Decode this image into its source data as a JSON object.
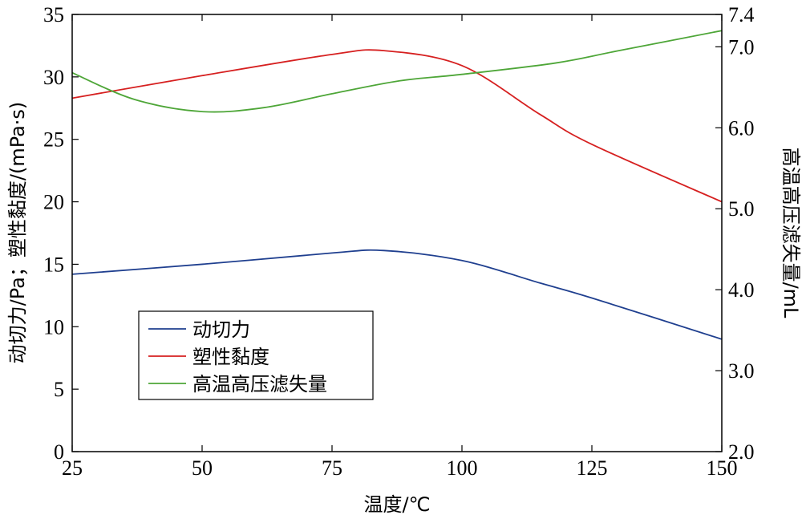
{
  "chart_data": {
    "type": "line",
    "xlabel": "温度/℃",
    "ylabel_left": "动切力/Pa；塑性黏度/(mPa·s)",
    "ylabel_right": "高温高压滤失量/mL",
    "xlim": [
      25,
      150
    ],
    "ylim_left": [
      0,
      35
    ],
    "ylim_right": [
      2.0,
      7.4
    ],
    "x_ticks": [
      {
        "value": 25,
        "label": "25"
      },
      {
        "value": 50,
        "label": "50"
      },
      {
        "value": 75,
        "label": "75"
      },
      {
        "value": 100,
        "label": "100"
      },
      {
        "value": 125,
        "label": "125"
      },
      {
        "value": 150,
        "label": "150"
      }
    ],
    "y_left_ticks": [
      {
        "value": 0,
        "label": "0"
      },
      {
        "value": 5,
        "label": "5"
      },
      {
        "value": 10,
        "label": "10"
      },
      {
        "value": 15,
        "label": "15"
      },
      {
        "value": 20,
        "label": "20"
      },
      {
        "value": 25,
        "label": "25"
      },
      {
        "value": 30,
        "label": "30"
      },
      {
        "value": 35,
        "label": "35"
      }
    ],
    "y_right_ticks": [
      {
        "value": 2.0,
        "label": "2.0"
      },
      {
        "value": 3.0,
        "label": "3.0"
      },
      {
        "value": 4.0,
        "label": "4.0"
      },
      {
        "value": 5.0,
        "label": "5.0"
      },
      {
        "value": 6.0,
        "label": "6.0"
      },
      {
        "value": 7.0,
        "label": "7.0"
      },
      {
        "value": 7.4,
        "label": "7.4"
      }
    ],
    "grid": false,
    "legend_position": "lower-left",
    "series": [
      {
        "name": "动切力",
        "axis": "left",
        "color": "#1f3f8f",
        "x": [
          25,
          50,
          75,
          85,
          100,
          115,
          125,
          150
        ],
        "y": [
          14.2,
          15.0,
          15.9,
          16.1,
          15.3,
          13.5,
          12.3,
          9.0
        ]
      },
      {
        "name": "塑性黏度",
        "axis": "left",
        "color": "#d62020",
        "x": [
          25,
          50,
          75,
          85,
          100,
          115,
          125,
          150
        ],
        "y": [
          28.3,
          30.1,
          31.8,
          32.1,
          30.9,
          27.0,
          24.6,
          20.0
        ]
      },
      {
        "name": "高温高压滤失量",
        "axis": "right",
        "color": "#4ea638",
        "x": [
          25,
          37,
          50,
          62,
          75,
          88,
          100,
          118,
          130,
          150
        ],
        "y": [
          6.68,
          6.35,
          6.2,
          6.25,
          6.42,
          6.58,
          6.66,
          6.8,
          6.95,
          7.2
        ]
      }
    ]
  }
}
